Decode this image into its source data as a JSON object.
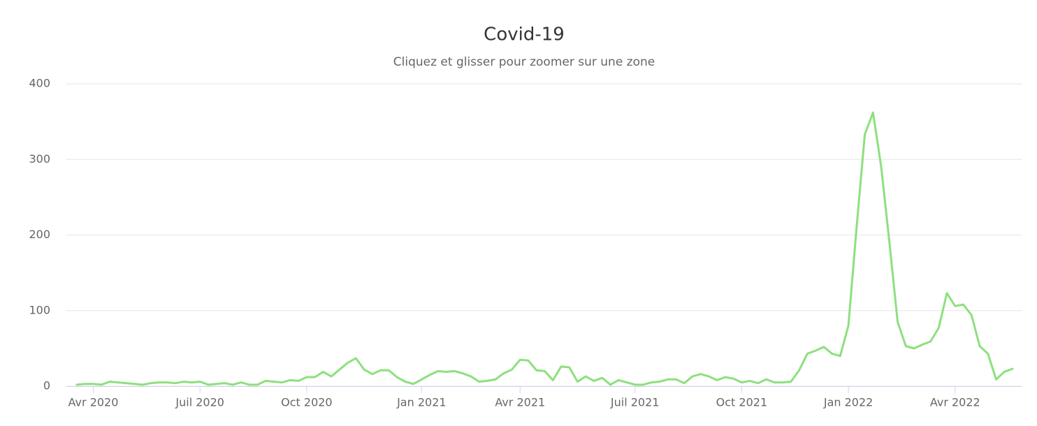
{
  "chart_data": {
    "type": "line",
    "title": "Covid-19",
    "subtitle": "Cliquez et glisser pour zoomer sur une zone",
    "categories": [
      null,
      null,
      "Avr 2020",
      null,
      null,
      null,
      null,
      null,
      null,
      null,
      null,
      null,
      null,
      null,
      null,
      "Juil 2020",
      null,
      null,
      null,
      null,
      null,
      null,
      null,
      null,
      null,
      null,
      null,
      null,
      "Oct 2020",
      null,
      null,
      null,
      null,
      null,
      null,
      null,
      null,
      null,
      null,
      null,
      null,
      null,
      "Jan 2021",
      null,
      null,
      null,
      null,
      null,
      null,
      null,
      null,
      null,
      null,
      null,
      "Avr 2021",
      null,
      null,
      null,
      null,
      null,
      null,
      null,
      null,
      null,
      null,
      null,
      null,
      null,
      "Juil 2021",
      null,
      null,
      null,
      null,
      null,
      null,
      null,
      null,
      null,
      null,
      null,
      null,
      "Oct 2021",
      null,
      null,
      null,
      null,
      null,
      null,
      null,
      null,
      null,
      null,
      null,
      null,
      "Jan 2022",
      null,
      null,
      null,
      null,
      null,
      null,
      null,
      null,
      null,
      null,
      null,
      null,
      "Avr 2022",
      null,
      null,
      null,
      null,
      null,
      null,
      null
    ],
    "series": [
      {
        "color": "#8de07e",
        "values": [
          2,
          3,
          3,
          2,
          6,
          5,
          4,
          3,
          2,
          4,
          5,
          5,
          4,
          6,
          5,
          6,
          2,
          3,
          4,
          2,
          5,
          2,
          2,
          7,
          6,
          5,
          8,
          7,
          12,
          12,
          19,
          13,
          22,
          31,
          37,
          22,
          16,
          21,
          21,
          12,
          6,
          3,
          9,
          15,
          20,
          19,
          20,
          17,
          13,
          6,
          7,
          9,
          17,
          22,
          35,
          34,
          21,
          20,
          8,
          26,
          25,
          6,
          13,
          7,
          11,
          2,
          8,
          5,
          2,
          2,
          5,
          6,
          9,
          9,
          4,
          13,
          16,
          13,
          8,
          12,
          10,
          5,
          7,
          4,
          9,
          5,
          5,
          6,
          21,
          43,
          47,
          52,
          43,
          40,
          80,
          210,
          333,
          362,
          290,
          190,
          85,
          53,
          50,
          55,
          59,
          77,
          123,
          106,
          108,
          94,
          53,
          43,
          9,
          19,
          23
        ]
      }
    ],
    "ylim": [
      0,
      400
    ],
    "yticks": [
      0,
      100,
      200,
      300,
      400
    ],
    "grid": true
  }
}
